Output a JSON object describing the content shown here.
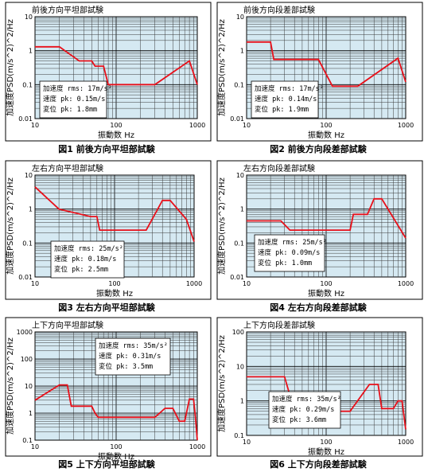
{
  "chart_data": [
    {
      "type": "line",
      "title": "前後方向平坦部試験",
      "caption": "図1 前後方向平坦部試験",
      "xlabel": "振動数 Hz",
      "ylabel": "加速度PSD(m/s^2)^2/Hz",
      "xlim": [
        10,
        1000
      ],
      "ylim": [
        0.01,
        10
      ],
      "xscale": "log",
      "yscale": "log",
      "xticks": [
        "10",
        "100",
        "1000"
      ],
      "yticks": [
        "0.01",
        "0.1",
        "1",
        "10"
      ],
      "grid": true,
      "series": [
        {
          "color": "#e8101a",
          "x": [
            10,
            20,
            35,
            50,
            55,
            70,
            80,
            120,
            300,
            800,
            1000
          ],
          "y": [
            1.3,
            1.3,
            0.5,
            0.5,
            0.35,
            0.35,
            0.1,
            0.1,
            0.1,
            0.5,
            0.1
          ]
        }
      ],
      "info": [
        "加速度 rms: 17m/s²",
        "速度 pk: 0.15m/s",
        "変位 pk: 1.8mm"
      ]
    },
    {
      "type": "line",
      "title": "前後方向段差部試験",
      "caption": "図2 前後方向段差部試験",
      "xlabel": "振動数 Hz",
      "ylabel": "加速度PSD(m/s^2)^2/Hz",
      "xlim": [
        10,
        1000
      ],
      "ylim": [
        0.01,
        10
      ],
      "xscale": "log",
      "yscale": "log",
      "xticks": [
        "10",
        "100",
        "1000"
      ],
      "yticks": [
        "0.01",
        "0.1",
        "1",
        "10"
      ],
      "grid": true,
      "series": [
        {
          "color": "#e8101a",
          "x": [
            10,
            20,
            22,
            80,
            120,
            250,
            800,
            1000
          ],
          "y": [
            1.8,
            1.8,
            0.55,
            0.55,
            0.09,
            0.09,
            0.6,
            0.12
          ]
        }
      ],
      "info": [
        "加速度 rms: 17m/s²",
        "速度 pk: 0.14m/s",
        "変位 pk: 1.9mm"
      ]
    },
    {
      "type": "line",
      "title": "左右方向平坦部試験",
      "caption": "図3 左右方向平坦部試験",
      "xlabel": "振動数 Hz",
      "ylabel": "加速度PSD(m/s^2)^2/Hz",
      "xlim": [
        10,
        1000
      ],
      "ylim": [
        0.01,
        10
      ],
      "xscale": "log",
      "yscale": "log",
      "xticks": [
        "10",
        "100",
        "1000"
      ],
      "yticks": [
        "0.01",
        "0.1",
        "1",
        "10"
      ],
      "grid": true,
      "series": [
        {
          "color": "#e8101a",
          "x": [
            10,
            20,
            50,
            60,
            65,
            150,
            250,
            400,
            500,
            800,
            1000
          ],
          "y": [
            4.5,
            1.0,
            0.6,
            0.6,
            0.24,
            0.24,
            0.24,
            1.8,
            1.8,
            0.5,
            0.11
          ]
        }
      ],
      "info": [
        "加速度  rms: 25m/s²",
        "速度 pk: 0.18m/s",
        "変位 pk: 2.5mm"
      ]
    },
    {
      "type": "line",
      "title": "左右方向段差部試験",
      "caption": "図4 左右方向段差部試験",
      "xlabel": "振動数 Hz",
      "ylabel": "加速度PSD(m/s^2)^2/Hz",
      "xlim": [
        10,
        1000
      ],
      "ylim": [
        0.01,
        10
      ],
      "xscale": "log",
      "yscale": "log",
      "xticks": [
        "10",
        "100",
        "1000"
      ],
      "yticks": [
        "0.01",
        "0.1",
        "1",
        "10"
      ],
      "grid": true,
      "series": [
        {
          "color": "#e8101a",
          "x": [
            10,
            27,
            35,
            200,
            220,
            300,
            330,
            400,
            500,
            1000
          ],
          "y": [
            0.45,
            0.45,
            0.24,
            0.24,
            0.7,
            0.7,
            0.7,
            2.0,
            2.0,
            0.14
          ]
        }
      ],
      "info": [
        "加速度 rms: 25m/s²",
        "速度 pk: 0.09m/s",
        "変位 pk: 1.0mm"
      ]
    },
    {
      "type": "line",
      "title": "上下方向平坦部試験",
      "caption": "図5 上下方向平坦部試験",
      "xlabel": "振動数 Hz",
      "ylabel": "加速度PSD(m/s^2)^2/Hz",
      "xlim": [
        10,
        1000
      ],
      "ylim": [
        0.1,
        1000
      ],
      "xscale": "log",
      "yscale": "log",
      "xticks": [
        "10",
        "100",
        "1000"
      ],
      "yticks": [
        "0.1",
        "1",
        "10",
        "100",
        "1000"
      ],
      "grid": true,
      "series": [
        {
          "color": "#e8101a",
          "x": [
            10,
            20,
            25,
            28,
            50,
            55,
            60,
            150,
            300,
            400,
            500,
            600,
            700,
            800,
            900,
            950,
            1000
          ],
          "y": [
            3,
            11,
            11,
            1.8,
            1.8,
            1.0,
            0.7,
            0.7,
            0.7,
            1.5,
            1.5,
            0.5,
            0.5,
            3.3,
            3.3,
            0.7,
            0.1
          ]
        }
      ],
      "info": [
        "加速度 rms: 35m/s²",
        "速度 pk: 0.31m/s",
        "変位 pk: 3.5mm"
      ]
    },
    {
      "type": "line",
      "title": "上下方向段差部試験",
      "caption": "図6 上下方向段差部試験",
      "xlabel": "振動数 Hz",
      "ylabel": "加速度PSD(m/s^2)^2/Hz",
      "xlim": [
        10,
        1000
      ],
      "ylim": [
        0.1,
        100
      ],
      "xscale": "log",
      "yscale": "log",
      "xticks": [
        "10",
        "100",
        "1000"
      ],
      "yticks": [
        "0.1",
        "1",
        "10",
        "100"
      ],
      "grid": true,
      "series": [
        {
          "color": "#e8101a",
          "x": [
            10,
            30,
            40,
            50,
            200,
            350,
            450,
            500,
            550,
            700,
            800,
            900,
            1000
          ],
          "y": [
            5,
            5,
            0.5,
            0.5,
            0.5,
            3,
            3,
            0.6,
            0.6,
            0.6,
            1,
            1,
            0.15
          ]
        }
      ],
      "info": [
        "加速度 rms: 35m/s²",
        "速度 pk: 0.29m/s",
        "変位 pk: 3.6mm"
      ]
    }
  ]
}
